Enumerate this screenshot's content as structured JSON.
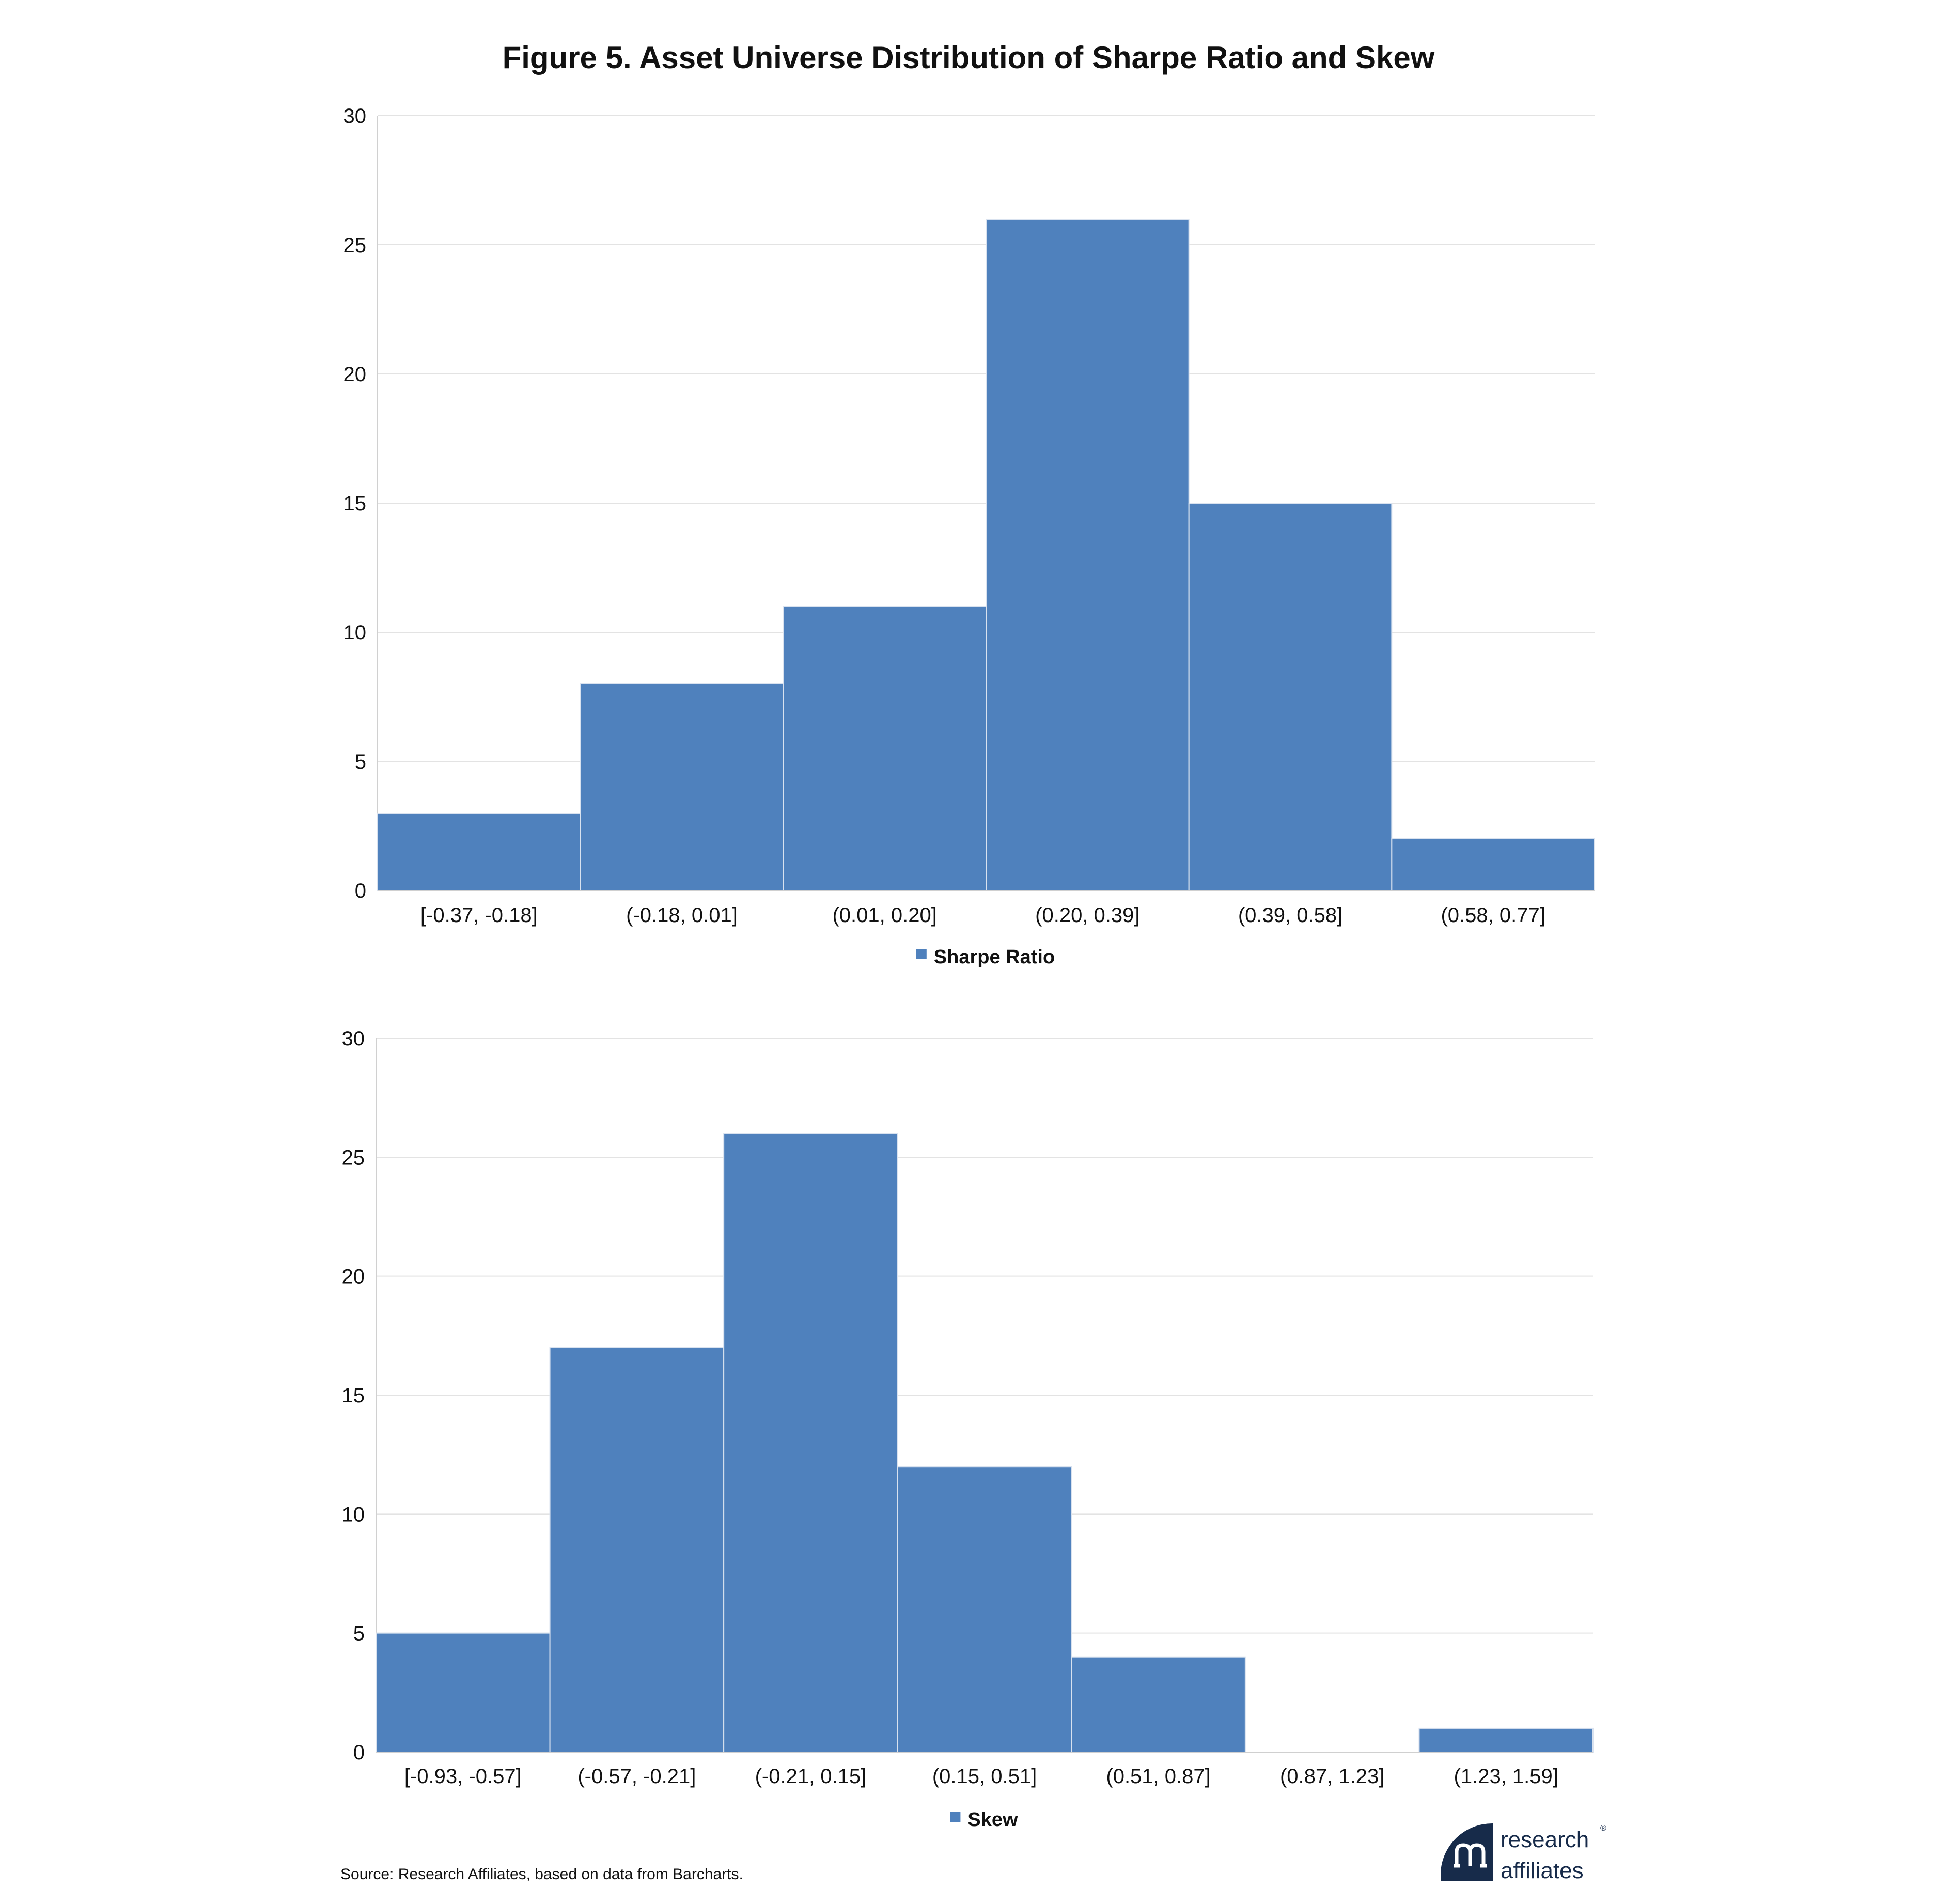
{
  "title": "Figure 5. Asset Universe Distribution of Sharpe Ratio and Skew",
  "source": "Source: Research Affiliates, based on data from Barcharts.",
  "logo": {
    "line1": "research",
    "line2": "affiliates",
    "mark": "®"
  },
  "colors": {
    "bar": "#4f81bd",
    "grid": "#e3e3e3",
    "logo": "#172b4a"
  },
  "chart_data": [
    {
      "type": "bar",
      "categories": [
        "[-0.37, -0.18]",
        "(-0.18, 0.01]",
        "(0.01, 0.20]",
        "(0.20, 0.39]",
        "(0.39, 0.58]",
        "(0.58, 0.77]"
      ],
      "series": [
        {
          "name": "Sharpe Ratio",
          "values": [
            3,
            8,
            11,
            26,
            15,
            2
          ]
        }
      ],
      "ylim": [
        0,
        30
      ],
      "yticks": [
        0,
        5,
        10,
        15,
        20,
        25,
        30
      ],
      "grid": true,
      "legend": "bottom-center"
    },
    {
      "type": "bar",
      "categories": [
        "[-0.93, -0.57]",
        "(-0.57, -0.21]",
        "(-0.21, 0.15]",
        "(0.15, 0.51]",
        "(0.51, 0.87]",
        "(0.87, 1.23]",
        "(1.23, 1.59]"
      ],
      "series": [
        {
          "name": "Skew",
          "values": [
            5,
            17,
            26,
            12,
            4,
            0,
            1
          ]
        }
      ],
      "ylim": [
        0,
        30
      ],
      "yticks": [
        0,
        5,
        10,
        15,
        20,
        25,
        30
      ],
      "grid": true,
      "legend": "bottom-center"
    }
  ]
}
